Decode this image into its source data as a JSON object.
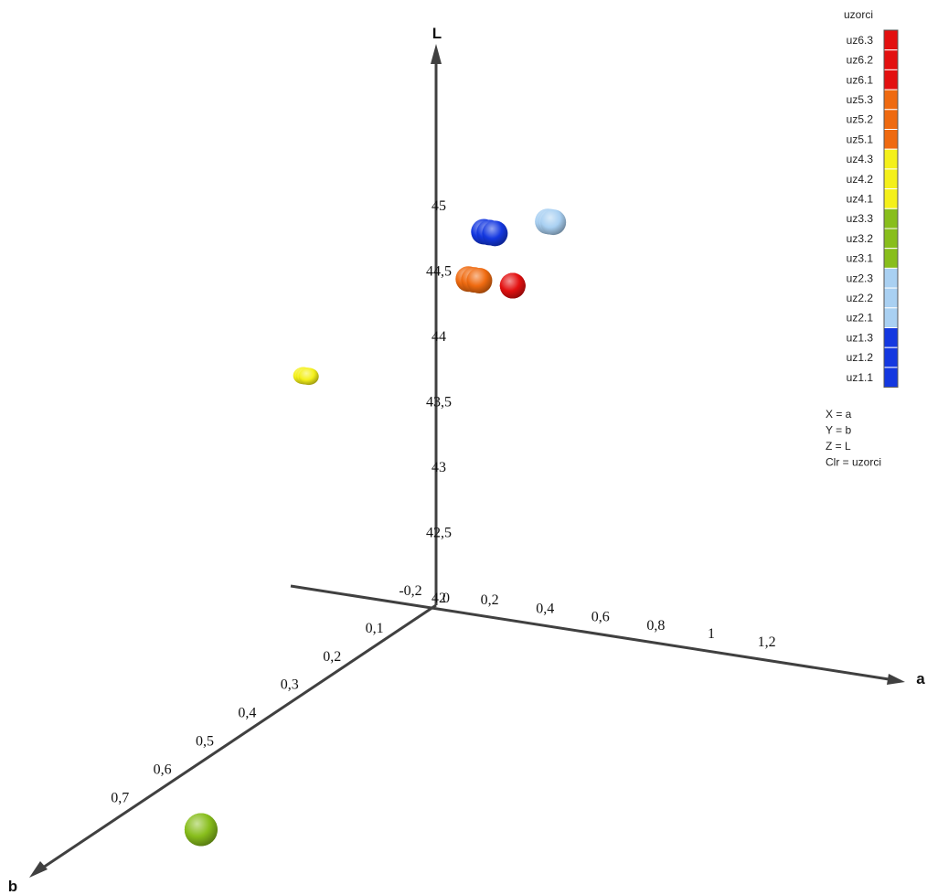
{
  "chart_data": {
    "type": "scatter",
    "dimensions": "3d",
    "axes": {
      "x": {
        "name": "a",
        "ticks": [
          "0,2",
          "0,4",
          "0,6",
          "0,8",
          "1",
          "1,2"
        ]
      },
      "y": {
        "name": "b",
        "ticks": [
          "0,1",
          "0,2",
          "0,3",
          "0,4",
          "0,5",
          "0,6",
          "0,7"
        ]
      },
      "z": {
        "name": "L",
        "ticks": [
          "42",
          "42,5",
          "43",
          "43,5",
          "44",
          "44,5",
          "45"
        ],
        "range": [
          42,
          45.5
        ]
      },
      "origin_labels": [
        "-0,2",
        "0"
      ]
    },
    "legend": {
      "title": "uzorci",
      "position": "right",
      "items": [
        {
          "label": "uz6.3",
          "color": "#e31010"
        },
        {
          "label": "uz6.2",
          "color": "#e31010"
        },
        {
          "label": "uz6.1",
          "color": "#e31010"
        },
        {
          "label": "uz5.3",
          "color": "#ef6a10"
        },
        {
          "label": "uz5.2",
          "color": "#ef6a10"
        },
        {
          "label": "uz5.1",
          "color": "#ef6a10"
        },
        {
          "label": "uz4.3",
          "color": "#f4f01a"
        },
        {
          "label": "uz4.2",
          "color": "#f4f01a"
        },
        {
          "label": "uz4.1",
          "color": "#f4f01a"
        },
        {
          "label": "uz3.3",
          "color": "#88be1c"
        },
        {
          "label": "uz3.2",
          "color": "#88be1c"
        },
        {
          "label": "uz3.1",
          "color": "#88be1c"
        },
        {
          "label": "uz2.3",
          "color": "#a9d0f2"
        },
        {
          "label": "uz2.2",
          "color": "#a9d0f2"
        },
        {
          "label": "uz2.1",
          "color": "#a9d0f2"
        },
        {
          "label": "uz1.3",
          "color": "#1438e0"
        },
        {
          "label": "uz1.2",
          "color": "#1438e0"
        },
        {
          "label": "uz1.1",
          "color": "#1438e0"
        }
      ]
    },
    "mapping": [
      "X = a",
      "Y = b",
      "Z = L",
      "Clr = uzorci"
    ],
    "series": [
      {
        "name": "uz1",
        "color": "#1438e0",
        "points": [
          {
            "a": 0.05,
            "b": -0.08,
            "L": 44.7
          },
          {
            "a": 0.07,
            "b": -0.08,
            "L": 44.7
          },
          {
            "a": 0.09,
            "b": -0.08,
            "L": 44.7
          }
        ]
      },
      {
        "name": "uz2",
        "color": "#a9d0f2",
        "points": [
          {
            "a": 0.25,
            "b": -0.1,
            "L": 44.8
          },
          {
            "a": 0.26,
            "b": -0.1,
            "L": 44.8
          },
          {
            "a": 0.27,
            "b": -0.1,
            "L": 44.8
          }
        ]
      },
      {
        "name": "uz3",
        "color": "#88be1c",
        "points": [
          {
            "a": 0.3,
            "b": 0.75,
            "L": 42.0
          },
          {
            "a": 0.3,
            "b": 0.75,
            "L": 42.0
          },
          {
            "a": 0.3,
            "b": 0.75,
            "L": 42.0
          }
        ]
      },
      {
        "name": "uz4",
        "color": "#f4f01a",
        "points": [
          {
            "a": -0.25,
            "b": 0.15,
            "L": 44.0
          },
          {
            "a": -0.24,
            "b": 0.15,
            "L": 44.0
          },
          {
            "a": -0.23,
            "b": 0.15,
            "L": 44.0
          }
        ]
      },
      {
        "name": "uz5",
        "color": "#ef6a10",
        "points": [
          {
            "a": 0.04,
            "b": -0.05,
            "L": 44.4
          },
          {
            "a": 0.06,
            "b": -0.05,
            "L": 44.4
          },
          {
            "a": 0.08,
            "b": -0.05,
            "L": 44.4
          }
        ]
      },
      {
        "name": "uz6",
        "color": "#e31010",
        "points": [
          {
            "a": 0.2,
            "b": -0.05,
            "L": 44.4
          },
          {
            "a": 0.2,
            "b": -0.05,
            "L": 44.4
          },
          {
            "a": 0.2,
            "b": -0.05,
            "L": 44.4
          }
        ]
      }
    ]
  }
}
